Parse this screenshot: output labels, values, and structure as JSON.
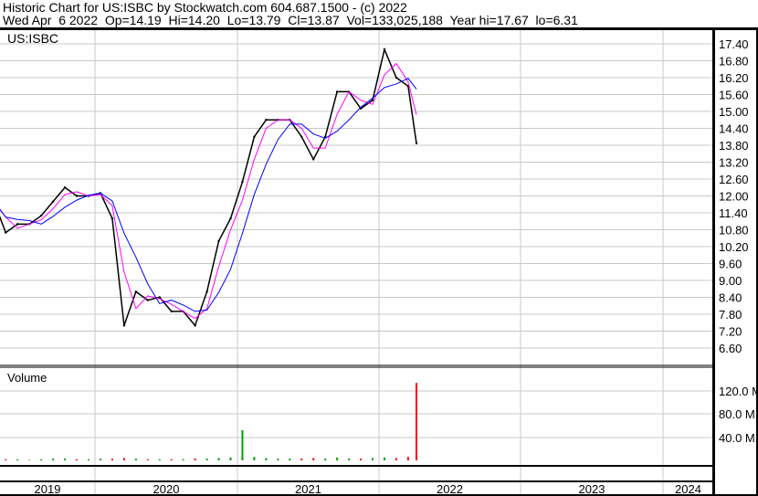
{
  "header": {
    "title": "Historic Chart for US:ISBC by Stockwatch.com 604.687.1500 - (c) 2022",
    "quote": "Wed Apr  6 2022  Op=14.19  Hi=14.20  Lo=13.79  Cl=13.87  Vol=133,025,188  Year hi=17.67  lo=6.31"
  },
  "chart_data": {
    "type": "line",
    "symbol_label": "US:ISBC",
    "volume_label": "Volume",
    "price_ticks": [
      "17.40",
      "16.80",
      "16.20",
      "15.60",
      "15.00",
      "14.40",
      "13.80",
      "13.20",
      "12.60",
      "12.00",
      "11.40",
      "10.80",
      "10.20",
      "9.60",
      "9.00",
      "8.40",
      "7.80",
      "7.20",
      "6.60"
    ],
    "volume_ticks": [
      "120.0 M",
      "80.0 M",
      "40.0 M"
    ],
    "year_labels": [
      "2019",
      "2020",
      "2021",
      "2022",
      "2023",
      "2024"
    ],
    "colors": {
      "price": "#000000",
      "ma_short": "#ff00ff",
      "ma_long": "#0000ff",
      "volume_up": "#00a000",
      "volume_down": "#ff0000"
    },
    "grid": true,
    "dates": [
      "2019-04",
      "2019-05",
      "2019-06",
      "2019-07",
      "2019-08",
      "2019-09",
      "2019-10",
      "2019-11",
      "2019-12",
      "2020-01",
      "2020-02",
      "2020-03",
      "2020-04",
      "2020-05",
      "2020-06",
      "2020-07",
      "2020-08",
      "2020-09",
      "2020-10",
      "2020-11",
      "2020-12",
      "2021-01",
      "2021-02",
      "2021-03",
      "2021-04",
      "2021-05",
      "2021-06",
      "2021-07",
      "2021-08",
      "2021-09",
      "2021-10",
      "2021-11",
      "2021-12",
      "2022-01",
      "2022-02",
      "2022-03",
      "2022-04-06"
    ],
    "close": [
      11.8,
      10.7,
      11.0,
      11.0,
      11.3,
      11.8,
      12.3,
      12.0,
      12.0,
      12.1,
      11.2,
      7.4,
      8.6,
      8.3,
      8.4,
      7.9,
      7.9,
      7.4,
      8.6,
      10.4,
      11.2,
      12.5,
      14.1,
      14.7,
      14.7,
      14.7,
      14.1,
      13.3,
      14.1,
      15.7,
      15.7,
      15.1,
      15.4,
      17.2,
      16.2,
      15.9,
      13.87
    ],
    "volume_millions": [
      2,
      2,
      2,
      1,
      2,
      3,
      3,
      2,
      2,
      3,
      3,
      4,
      3,
      2,
      2,
      2,
      2,
      3,
      3,
      4,
      5,
      52,
      6,
      4,
      3,
      3,
      3,
      4,
      3,
      5,
      3,
      3,
      4,
      5,
      4,
      6,
      133
    ]
  }
}
